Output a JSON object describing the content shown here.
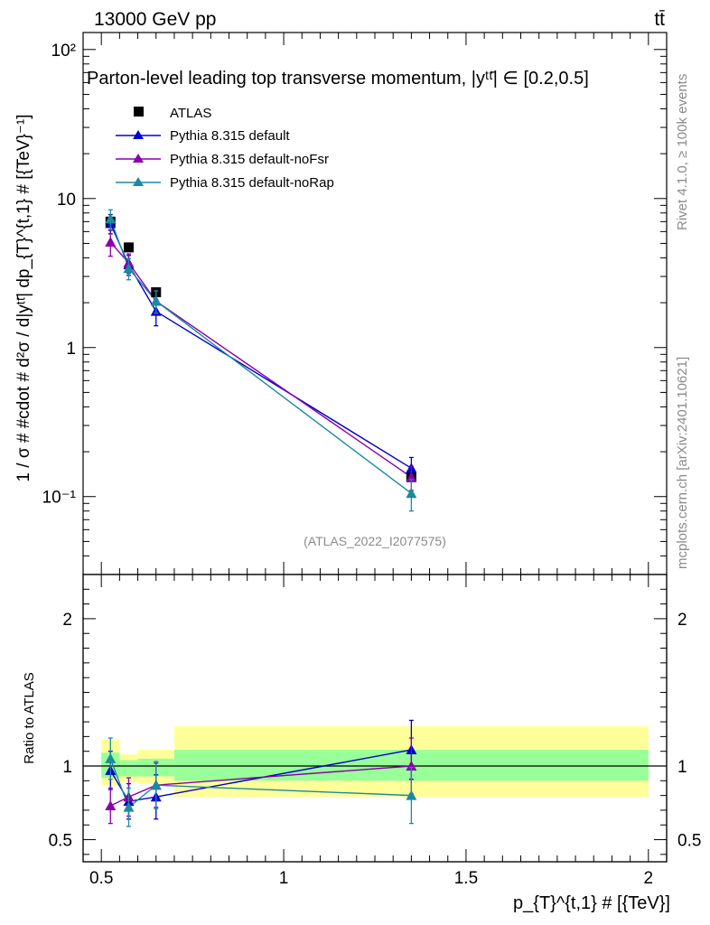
{
  "header": {
    "energy_label": "13000 GeV pp",
    "process_label": "tt̄"
  },
  "side_labels": {
    "rivet": "Rivet 4.1.0, ≥ 100k events",
    "source": "mcplots.cern.ch [arXiv:2401.10621]"
  },
  "chart_data": [
    {
      "type": "line",
      "title": "Parton-level leading top transverse momentum, |yᵗᵗ̄| ∈ [0.2,0.5]",
      "xlabel": "p_{T}^{t,1} # [{TeV}]",
      "ylabel": "1 / σ # #cdot # d²σ / d|yᵗᵗ̄| dp_{T}^{t,1} # [{TeV}⁻¹]",
      "yscale": "log",
      "xlim": [
        0.45,
        2.05
      ],
      "ylim": [
        0.03,
        130
      ],
      "ytick_labels": [
        "10⁻¹",
        "1",
        "10",
        "10²"
      ],
      "watermark": "(ATLAS_2022_I2077575)",
      "legend": [
        "ATLAS",
        "Pythia 8.315 default",
        "Pythia 8.315 default-noFsr",
        "Pythia 8.315 default-noRap"
      ],
      "data": {
        "name": "ATLAS",
        "x": [
          0.525,
          0.575,
          0.65,
          1.35
        ],
        "y": [
          7.0,
          4.7,
          2.35,
          0.135
        ],
        "color": "#000000"
      },
      "series": [
        {
          "name": "Pythia 8.315 default",
          "color": "#0000cc",
          "x": [
            0.525,
            0.575,
            0.65,
            1.35
          ],
          "y": [
            6.8,
            3.6,
            1.75,
            0.155
          ],
          "err": [
            1.0,
            0.55,
            0.35,
            0.028
          ]
        },
        {
          "name": "Pythia 8.315 default-noFsr",
          "color": "#8800aa",
          "x": [
            0.525,
            0.575,
            0.65,
            1.35
          ],
          "y": [
            5.1,
            3.7,
            2.05,
            0.135
          ],
          "err": [
            1.0,
            0.55,
            0.35,
            0.025
          ]
        },
        {
          "name": "Pythia 8.315 default-noRap",
          "color": "#1a8aa0",
          "x": [
            0.525,
            0.575,
            0.65,
            1.35
          ],
          "y": [
            7.3,
            3.4,
            2.05,
            0.105
          ],
          "err": [
            1.1,
            0.55,
            0.35,
            0.025
          ]
        }
      ]
    },
    {
      "type": "line",
      "title": "",
      "xlabel": "p_{T}^{t,1} # [{TeV}]",
      "ylabel": "Ratio to ATLAS",
      "xlim": [
        0.45,
        2.05
      ],
      "ylim": [
        0.35,
        2.3
      ],
      "xtick_labels": [
        "0.5",
        "1",
        "1.5",
        "2"
      ],
      "ytick_labels": [
        "0.5",
        "1",
        "2"
      ],
      "bands": [
        {
          "x0": 0.5,
          "x1": 0.55,
          "inner": [
            0.92,
            1.09
          ],
          "outer": [
            0.87,
            1.18
          ]
        },
        {
          "x0": 0.55,
          "x1": 0.6,
          "inner": [
            0.93,
            1.04
          ],
          "outer": [
            0.89,
            1.08
          ]
        },
        {
          "x0": 0.6,
          "x1": 0.7,
          "inner": [
            0.93,
            1.05
          ],
          "outer": [
            0.88,
            1.11
          ]
        },
        {
          "x0": 0.7,
          "x1": 2.0,
          "inner": [
            0.9,
            1.11
          ],
          "outer": [
            0.79,
            1.27
          ]
        }
      ],
      "series": [
        {
          "name": "Pythia 8.315 default",
          "color": "#0000cc",
          "x": [
            0.525,
            0.575,
            0.65,
            1.35
          ],
          "y": [
            0.97,
            0.76,
            0.79,
            1.11
          ],
          "err": [
            0.13,
            0.12,
            0.15,
            0.2
          ]
        },
        {
          "name": "Pythia 8.315 default-noFsr",
          "color": "#8800aa",
          "x": [
            0.525,
            0.575,
            0.65,
            1.35
          ],
          "y": [
            0.73,
            0.79,
            0.87,
            1.0
          ],
          "err": [
            0.12,
            0.13,
            0.15,
            0.19
          ]
        },
        {
          "name": "Pythia 8.315 default-noRap",
          "color": "#1a8aa0",
          "x": [
            0.525,
            0.575,
            0.65,
            1.35
          ],
          "y": [
            1.05,
            0.72,
            0.87,
            0.8
          ],
          "err": [
            0.14,
            0.13,
            0.16,
            0.19
          ]
        }
      ]
    }
  ]
}
